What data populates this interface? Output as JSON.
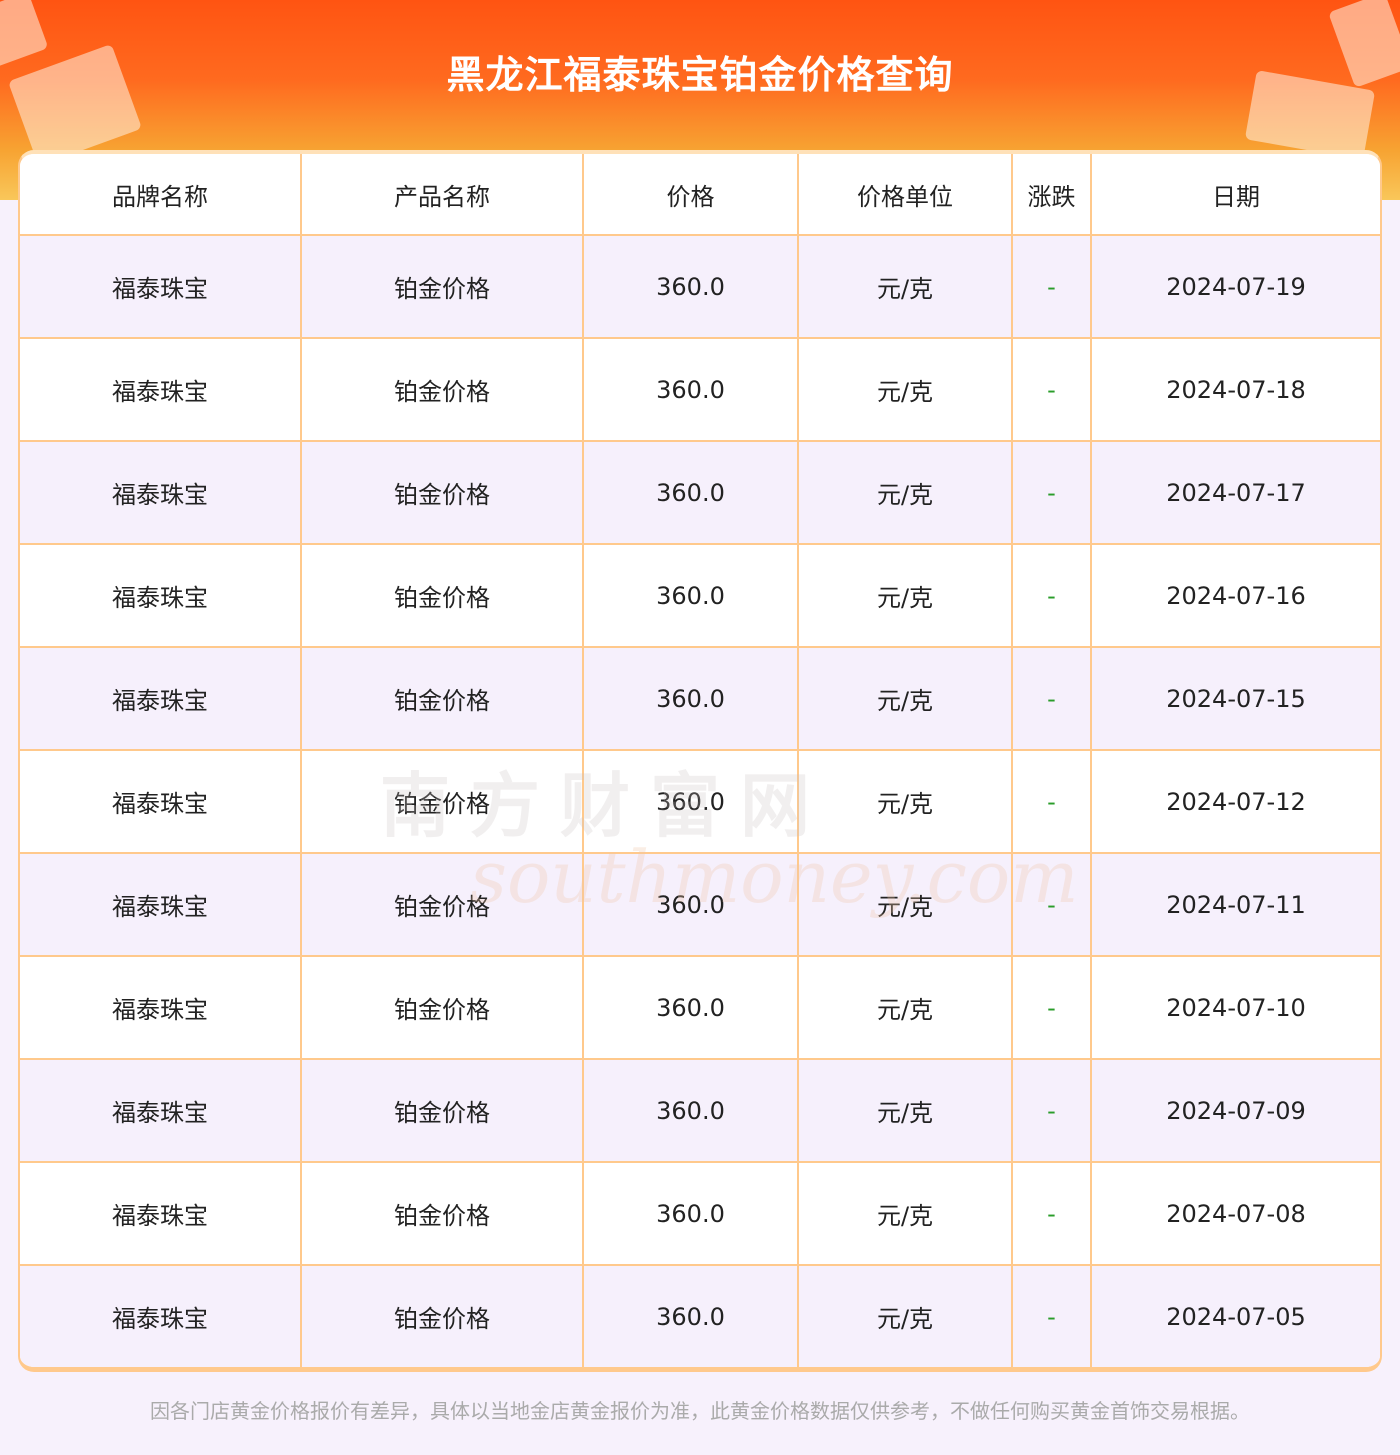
{
  "title": "黑龙江福泰珠宝铂金价格查询",
  "columns": [
    "品牌名称",
    "产品名称",
    "价格",
    "价格单位",
    "涨跌",
    "日期"
  ],
  "rows": [
    [
      "福泰珠宝",
      "铂金价格",
      "360.0",
      "元/克",
      "-",
      "2024-07-19"
    ],
    [
      "福泰珠宝",
      "铂金价格",
      "360.0",
      "元/克",
      "-",
      "2024-07-18"
    ],
    [
      "福泰珠宝",
      "铂金价格",
      "360.0",
      "元/克",
      "-",
      "2024-07-17"
    ],
    [
      "福泰珠宝",
      "铂金价格",
      "360.0",
      "元/克",
      "-",
      "2024-07-16"
    ],
    [
      "福泰珠宝",
      "铂金价格",
      "360.0",
      "元/克",
      "-",
      "2024-07-15"
    ],
    [
      "福泰珠宝",
      "铂金价格",
      "360.0",
      "元/克",
      "-",
      "2024-07-12"
    ],
    [
      "福泰珠宝",
      "铂金价格",
      "360.0",
      "元/克",
      "-",
      "2024-07-11"
    ],
    [
      "福泰珠宝",
      "铂金价格",
      "360.0",
      "元/克",
      "-",
      "2024-07-10"
    ],
    [
      "福泰珠宝",
      "铂金价格",
      "360.0",
      "元/克",
      "-",
      "2024-07-09"
    ],
    [
      "福泰珠宝",
      "铂金价格",
      "360.0",
      "元/克",
      "-",
      "2024-07-08"
    ],
    [
      "福泰珠宝",
      "铂金价格",
      "360.0",
      "元/克",
      "-",
      "2024-07-05"
    ]
  ],
  "watermark": {
    "cn": "南方财富网",
    "en": "southmoney.com"
  },
  "footnote": "因各门店黄金价格报价有差异，具体以当地金店黄金报价为准，此黄金价格数据仅供参考，不做任何购买黄金首饰交易根据。",
  "colors": {
    "accent": "#ff5412",
    "border": "#ffc98c",
    "change": "#2a9d2a"
  }
}
